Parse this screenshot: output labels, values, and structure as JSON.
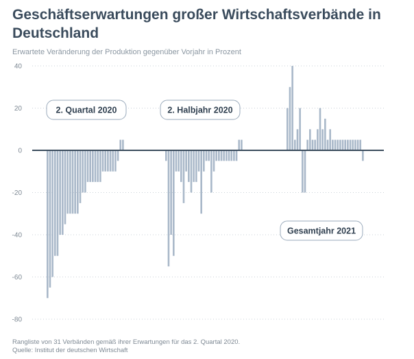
{
  "title": "Geschäftserwartungen großer Wirtschaftsverbände in Deutschland",
  "subtitle": "Erwartete Veränderung der Produktion gegenüber Vorjahr in Prozent",
  "footnote": {
    "line1": "Rangliste von 31 Verbänden gemäß ihrer Erwartungen für das 2. Quartal 2020.",
    "line2": "Quelle: Institut der deutschen Wirtschaft"
  },
  "colors": {
    "bar": "#a9b8c9",
    "zero_line": "#3a4b5c",
    "grid": "#c9d0d7",
    "label_border": "#9aaabb"
  },
  "chart_data": {
    "type": "bar",
    "ylabel": "",
    "ylim": [
      -80,
      40
    ],
    "y_ticks": [
      "40",
      "20",
      "0",
      "-20",
      "-40",
      "-60",
      "-80"
    ],
    "grid": "dotted horizontal",
    "series": [
      {
        "name": "2. Quartal 2020",
        "values": [
          -70,
          -65,
          -60,
          -50,
          -50,
          -40,
          -40,
          -35,
          -30,
          -30,
          -30,
          -30,
          -30,
          -25,
          -20,
          -20,
          -15,
          -15,
          -15,
          -15,
          -15,
          -15,
          -10,
          -10,
          -10,
          -10,
          -10,
          -10,
          -5,
          5,
          5
        ]
      },
      {
        "name": "2. Halbjahr 2020",
        "values": [
          -5,
          -55,
          -40,
          -50,
          -10,
          -10,
          -15,
          -25,
          -10,
          -15,
          -20,
          -15,
          -15,
          -10,
          -30,
          -10,
          -5,
          -5,
          -20,
          -10,
          -5,
          -5,
          -5,
          -5,
          -5,
          -5,
          -5,
          -5,
          -5,
          5,
          5
        ]
      },
      {
        "name": "Gesamtjahr 2021",
        "values": [
          20,
          30,
          40,
          5,
          10,
          20,
          -20,
          -20,
          5,
          10,
          5,
          5,
          10,
          20,
          10,
          15,
          5,
          10,
          5,
          5,
          5,
          5,
          5,
          5,
          5,
          5,
          5,
          5,
          5,
          5,
          -5
        ]
      }
    ]
  }
}
